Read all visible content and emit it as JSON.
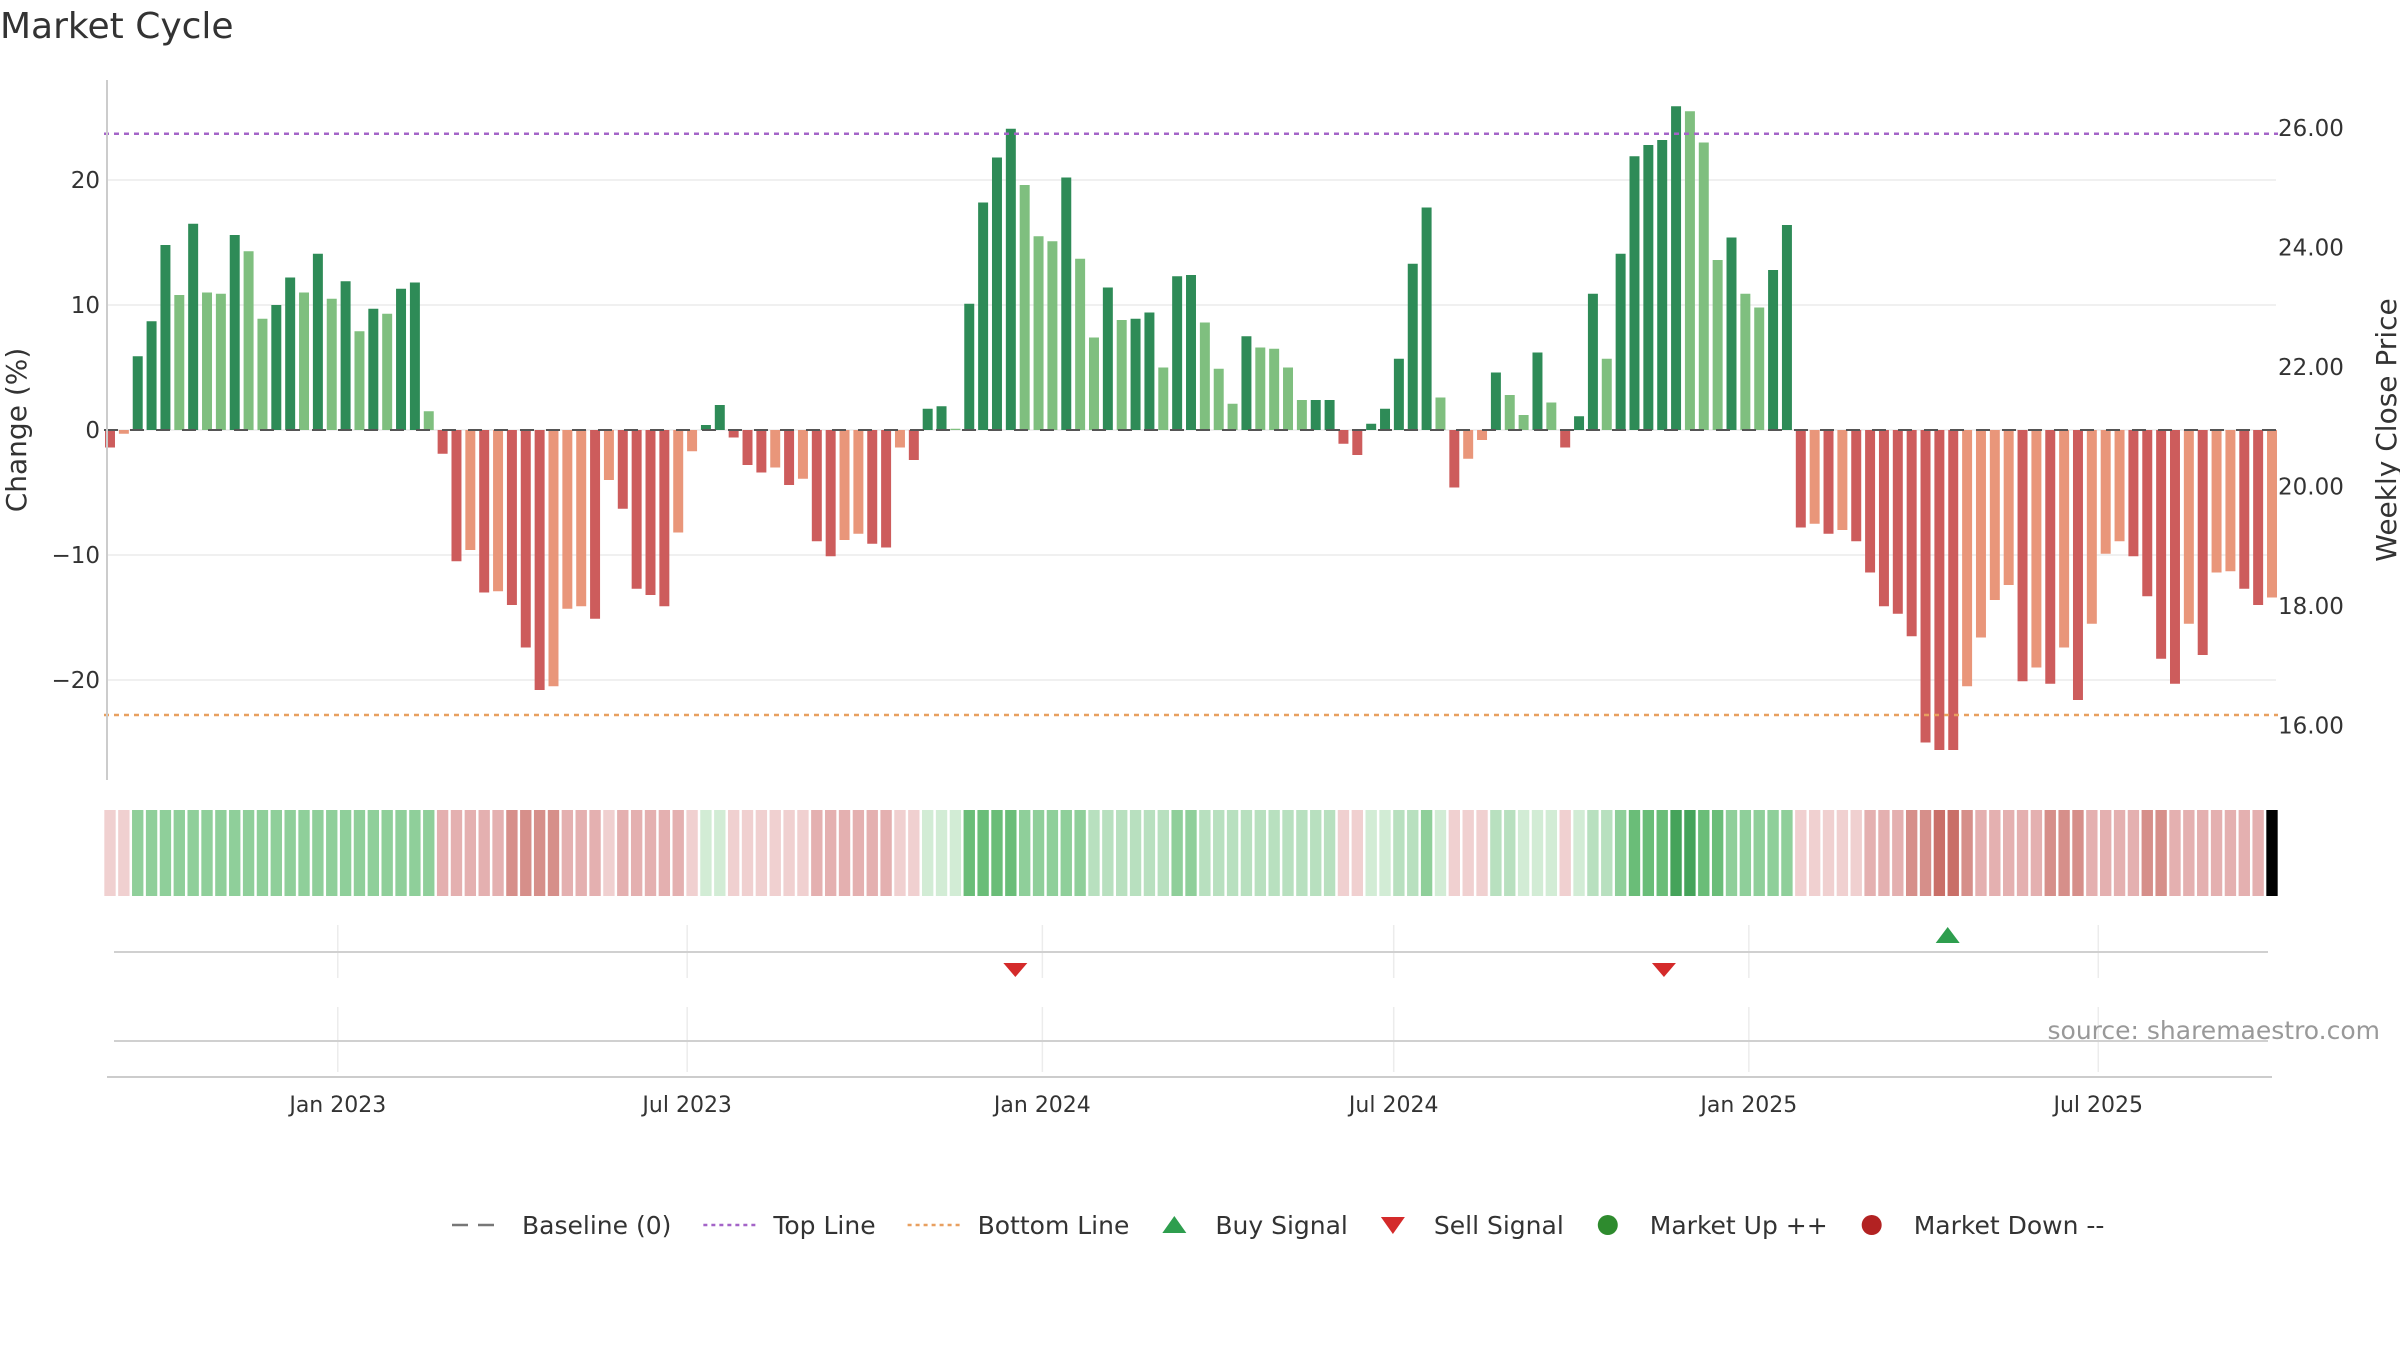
{
  "chart_data": {
    "type": "bar",
    "title": "Market Cycle",
    "y_left_label": "Change (%)",
    "y_right_label": "Weekly Close Price",
    "ylim": [
      -28,
      28
    ],
    "y_right_lim": [
      15.09,
      26.8
    ],
    "y_left_ticks": [
      "20",
      "10",
      "0",
      "−10",
      "−20"
    ],
    "y_left_tick_values": [
      20,
      10,
      0,
      -10,
      -20
    ],
    "y_right_ticks": [
      "26.00",
      "24.00",
      "22.00",
      "20.00",
      "18.00",
      "16.00"
    ],
    "y_right_tick_values": [
      26,
      24,
      22,
      20,
      18,
      16
    ],
    "x_start": "2022-09-05",
    "x_end": "2025-09-29",
    "x_ticks": [
      {
        "date": "2023-01-01",
        "label": "Jan 2023"
      },
      {
        "date": "2023-07-01",
        "label": "Jul 2023"
      },
      {
        "date": "2024-01-01",
        "label": "Jan 2024"
      },
      {
        "date": "2024-07-01",
        "label": "Jul 2024"
      },
      {
        "date": "2025-01-01",
        "label": "Jan 2025"
      },
      {
        "date": "2025-07-01",
        "label": "Jul 2025"
      }
    ],
    "top_line": 23.7,
    "bottom_line": -22.8,
    "values": [
      -1.4,
      -0.3,
      5.9,
      8.7,
      14.8,
      10.8,
      16.5,
      11.0,
      10.9,
      15.6,
      14.3,
      8.9,
      10.0,
      12.2,
      11.0,
      14.1,
      10.5,
      11.9,
      7.9,
      9.7,
      9.3,
      11.3,
      11.8,
      1.5,
      -1.9,
      -10.5,
      -9.6,
      -13.0,
      -12.9,
      -14.0,
      -17.4,
      -20.8,
      -20.5,
      -14.3,
      -14.1,
      -15.1,
      -4.0,
      -6.3,
      -12.7,
      -13.2,
      -14.1,
      -8.2,
      -1.7,
      0.4,
      2.0,
      -0.6,
      -2.8,
      -3.4,
      -3.0,
      -4.4,
      -3.9,
      -8.9,
      -10.1,
      -8.8,
      -8.3,
      -9.1,
      -9.4,
      -1.4,
      -2.4,
      1.7,
      1.9,
      0.1,
      10.1,
      18.2,
      21.8,
      24.1,
      19.6,
      15.5,
      15.1,
      20.2,
      13.7,
      7.4,
      11.4,
      8.8,
      8.9,
      9.4,
      5.0,
      12.3,
      12.4,
      8.6,
      4.9,
      2.1,
      7.5,
      6.6,
      6.5,
      5.0,
      2.4,
      2.4,
      2.4,
      -1.1,
      -2.0,
      0.5,
      1.7,
      5.7,
      13.3,
      17.8,
      2.6,
      -4.6,
      -2.3,
      -0.8,
      4.6,
      2.8,
      1.2,
      6.2,
      2.2,
      -1.4,
      1.1,
      10.9,
      5.7,
      14.1,
      21.9,
      22.8,
      23.2,
      25.9,
      25.5,
      23.0,
      13.6,
      15.4,
      10.9,
      9.8,
      12.8,
      16.4,
      -7.8,
      -7.5,
      -8.3,
      -8.0,
      -8.9,
      -11.4,
      -14.1,
      -14.7,
      -16.5,
      -25.0,
      -25.6,
      -25.6,
      -20.5,
      -16.6,
      -13.6,
      -12.4,
      -20.1,
      -19.0,
      -20.3,
      -17.4,
      -21.6,
      -15.5,
      -9.9,
      -8.9,
      -10.1,
      -13.3,
      -18.3,
      -20.3,
      -15.5,
      -18.0,
      -11.4,
      -11.3,
      -12.7,
      -14.0,
      -13.4
    ],
    "heat_levels": [
      1,
      1,
      3,
      3,
      3,
      3,
      3,
      3,
      3,
      3,
      3,
      3,
      3,
      3,
      3,
      3,
      3,
      3,
      3,
      3,
      3,
      3,
      3,
      3,
      2,
      2,
      2,
      2,
      2,
      3,
      3,
      3,
      3,
      2,
      2,
      2,
      1,
      2,
      2,
      2,
      2,
      2,
      1,
      1,
      1,
      1,
      1,
      1,
      1,
      1,
      1,
      2,
      2,
      2,
      2,
      2,
      2,
      1,
      1,
      1,
      1,
      1,
      4,
      4,
      4,
      4,
      3,
      3,
      3,
      3,
      3,
      2,
      2,
      2,
      2,
      2,
      2,
      3,
      3,
      2,
      2,
      2,
      2,
      2,
      2,
      2,
      2,
      2,
      2,
      1,
      1,
      1,
      1,
      2,
      2,
      3,
      1,
      1,
      1,
      1,
      2,
      2,
      1,
      1,
      1,
      1,
      1,
      2,
      2,
      3,
      4,
      4,
      4,
      5,
      5,
      4,
      4,
      3,
      3,
      3,
      3,
      3,
      1,
      1,
      1,
      1,
      1,
      2,
      2,
      2,
      3,
      3,
      4,
      4,
      3,
      2,
      2,
      2,
      2,
      2,
      3,
      3,
      3,
      2,
      2,
      2,
      2,
      3,
      3,
      2,
      2,
      2,
      2,
      2,
      2,
      2
    ],
    "buy_signals": [
      {
        "date": "2025-04-14"
      }
    ],
    "sell_signals": [
      {
        "date": "2023-12-18"
      },
      {
        "date": "2024-11-18"
      }
    ],
    "source": "source: sharemaestro.com",
    "legend": [
      {
        "label": "Baseline (0)",
        "kind": "baseline",
        "color": "#777777"
      },
      {
        "label": "Top Line",
        "kind": "dotline",
        "color": "#a464c8"
      },
      {
        "label": "Bottom Line",
        "kind": "dotline",
        "color": "#e8a060"
      },
      {
        "label": "Buy Signal",
        "kind": "tri-up",
        "color": "#2e9e4e"
      },
      {
        "label": "Sell Signal",
        "kind": "tri-down",
        "color": "#d42a2a"
      },
      {
        "label": "Market Up ++",
        "kind": "dot",
        "color": "#2e8b2e"
      },
      {
        "label": "Market Down --",
        "kind": "dot",
        "color": "#b22222"
      }
    ],
    "colors": {
      "pos_dark": "#2e8b57",
      "pos_light": "#7fbf7f",
      "neg_dark": "#cd5c5c",
      "neg_light": "#e9967a",
      "heat_pos": [
        "#d2ecd5",
        "#b8e0bf",
        "#8fcf9a",
        "#6abd78",
        "#45a35a"
      ],
      "heat_neg": [
        "#f0d0d0",
        "#e4b0b0",
        "#d68f8a",
        "#c96f68",
        "#b7554d"
      ]
    }
  }
}
